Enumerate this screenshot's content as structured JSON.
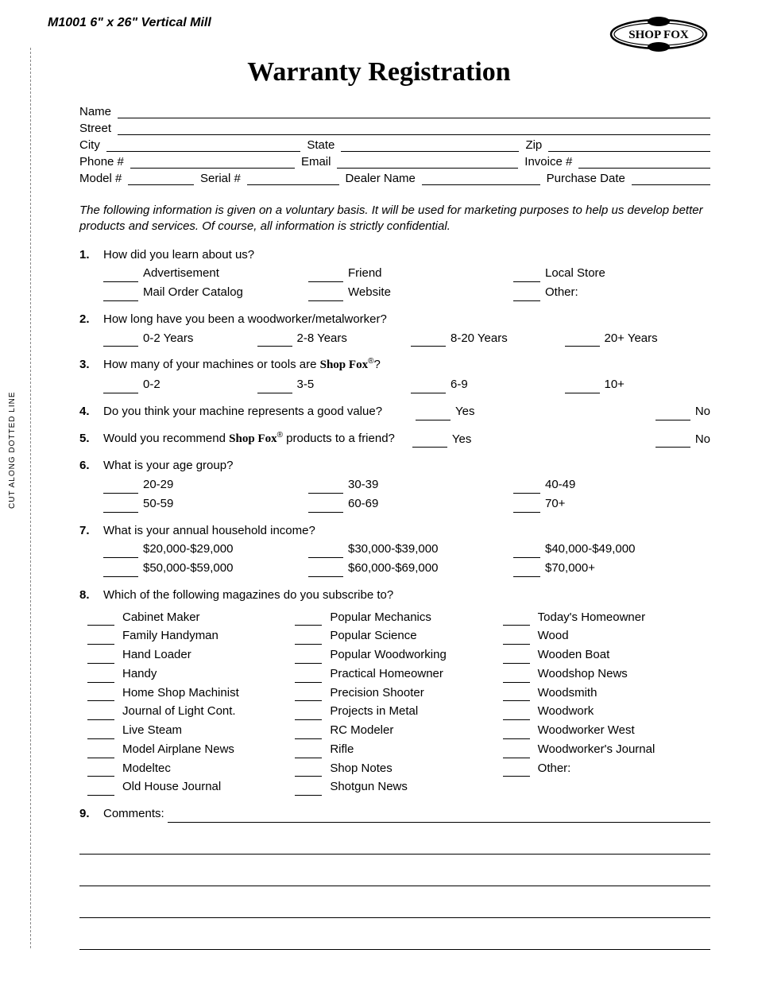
{
  "header": {
    "product": "M1001 6\" x 26\" Vertical Mill",
    "brand": "SHOP FOX",
    "title": "Warranty Registration"
  },
  "cut_line_text": "CUT ALONG DOTTED LINE",
  "contact_fields": {
    "name": "Name",
    "street": "Street",
    "city": "City",
    "state": "State",
    "zip": "Zip",
    "phone": "Phone #",
    "email": "Email",
    "invoice": "Invoice #",
    "model": "Model #",
    "serial": "Serial #",
    "dealer": "Dealer Name",
    "purchase_date": "Purchase Date"
  },
  "disclaimer": "The following information is given on a voluntary basis. It will be used for marketing purposes to help us develop better products and services. Of course, all information is strictly confidential.",
  "questions": {
    "q1": {
      "num": "1.",
      "text": "How did you learn about us?",
      "options": [
        "Advertisement",
        "Friend",
        "Local Store",
        "Mail Order Catalog",
        "Website",
        "Other:"
      ]
    },
    "q2": {
      "num": "2.",
      "text": "How long have you been a woodworker/metalworker?",
      "options": [
        "0-2 Years",
        "2-8 Years",
        "8-20 Years",
        "20+ Years"
      ]
    },
    "q3": {
      "num": "3.",
      "text_pre": "How many of your machines or tools are ",
      "brand": "Shop Fox",
      "text_post": "?",
      "options": [
        "0-2",
        "3-5",
        "6-9",
        "10+"
      ]
    },
    "q4": {
      "num": "4.",
      "text": "Do you think your machine represents a good value?",
      "yes": "Yes",
      "no": "No"
    },
    "q5": {
      "num": "5.",
      "text_pre": "Would you recommend ",
      "brand": "Shop Fox",
      "text_post": " products to a friend?",
      "yes": "Yes",
      "no": "No"
    },
    "q6": {
      "num": "6.",
      "text": "What is your age group?",
      "options": [
        "20-29",
        "30-39",
        "40-49",
        "50-59",
        "60-69",
        "70+"
      ]
    },
    "q7": {
      "num": "7.",
      "text": "What is your annual household income?",
      "options": [
        "$20,000-$29,000",
        "$30,000-$39,000",
        "$40,000-$49,000",
        "$50,000-$59,000",
        "$60,000-$69,000",
        "$70,000+"
      ]
    },
    "q8": {
      "num": "8.",
      "text": "Which of the following magazines do you subscribe to?",
      "col1": [
        "Cabinet Maker",
        "Family Handyman",
        "Hand Loader",
        "Handy",
        "Home Shop Machinist",
        "Journal of Light Cont.",
        "Live Steam",
        "Model Airplane News",
        "Modeltec",
        "Old House Journal"
      ],
      "col2": [
        "Popular Mechanics",
        "Popular Science",
        "Popular Woodworking",
        "Practical Homeowner",
        "Precision Shooter",
        "Projects in Metal",
        "RC Modeler",
        "Rifle",
        "Shop Notes",
        "Shotgun News"
      ],
      "col3": [
        "Today's Homeowner",
        "Wood",
        "Wooden Boat",
        "Woodshop News",
        "Woodsmith",
        "Woodwork",
        "Woodworker West",
        "Woodworker's Journal",
        "Other:"
      ]
    },
    "q9": {
      "num": "9.",
      "label": "Comments:"
    }
  }
}
